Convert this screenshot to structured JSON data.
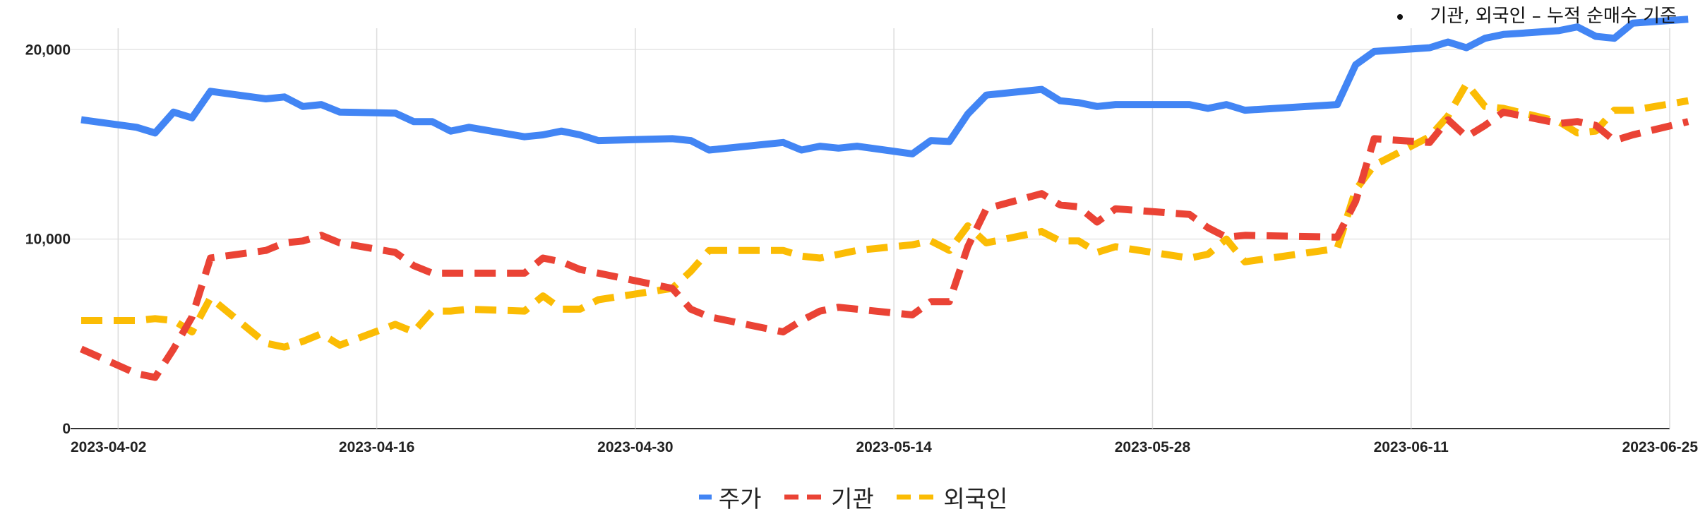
{
  "note": {
    "text": "기관, 외국인 – 누적 순매수 기준"
  },
  "chart_data": {
    "type": "line",
    "x_ticks": [
      "2023-04-02",
      "2023-04-16",
      "2023-04-30",
      "2023-05-14",
      "2023-05-28",
      "2023-06-11",
      "2023-06-25"
    ],
    "y_ticks": [
      "0",
      "10,000",
      "20,000"
    ],
    "ylim": [
      0,
      21500
    ],
    "xlim": [
      "2023-03-31",
      "2023-06-25"
    ],
    "grid": true,
    "legend_position": "bottom",
    "dates": [
      "2023-03-31",
      "2023-04-03",
      "2023-04-04",
      "2023-04-05",
      "2023-04-06",
      "2023-04-07",
      "2023-04-10",
      "2023-04-11",
      "2023-04-12",
      "2023-04-13",
      "2023-04-14",
      "2023-04-17",
      "2023-04-18",
      "2023-04-19",
      "2023-04-20",
      "2023-04-21",
      "2023-04-24",
      "2023-04-25",
      "2023-04-26",
      "2023-04-27",
      "2023-04-28",
      "2023-05-02",
      "2023-05-03",
      "2023-05-04",
      "2023-05-08",
      "2023-05-09",
      "2023-05-10",
      "2023-05-11",
      "2023-05-12",
      "2023-05-15",
      "2023-05-16",
      "2023-05-17",
      "2023-05-18",
      "2023-05-19",
      "2023-05-22",
      "2023-05-23",
      "2023-05-24",
      "2023-05-25",
      "2023-05-26",
      "2023-05-30",
      "2023-05-31",
      "2023-06-01",
      "2023-06-02",
      "2023-06-07",
      "2023-06-08",
      "2023-06-09",
      "2023-06-12",
      "2023-06-13",
      "2023-06-14",
      "2023-06-15",
      "2023-06-16",
      "2023-06-19",
      "2023-06-20",
      "2023-06-21",
      "2023-06-22",
      "2023-06-23",
      "2023-06-26"
    ],
    "series": [
      {
        "name": "주가",
        "color": "#4285F4",
        "dash": "solid",
        "values": [
          16300,
          15900,
          15600,
          16700,
          16400,
          17800,
          17400,
          17500,
          17000,
          17100,
          16700,
          16650,
          16200,
          16200,
          15700,
          15900,
          15400,
          15500,
          15700,
          15500,
          15200,
          15300,
          15200,
          14700,
          15100,
          14700,
          14900,
          14800,
          14900,
          14500,
          15200,
          15150,
          16600,
          17600,
          17900,
          17300,
          17200,
          17000,
          17100,
          17100,
          16900,
          17100,
          16800,
          17100,
          19200,
          19900,
          20100,
          20400,
          20100,
          20600,
          20800,
          21000,
          21200,
          20700,
          20600,
          21400,
          21600
        ]
      },
      {
        "name": "기관",
        "color": "#EA4335",
        "dash": "dashed",
        "values": [
          4200,
          2900,
          2700,
          4200,
          5900,
          9000,
          9400,
          9800,
          9900,
          10200,
          9800,
          9300,
          8600,
          8200,
          8200,
          8200,
          8200,
          9000,
          8800,
          8400,
          8200,
          7400,
          6300,
          5900,
          5100,
          5700,
          6200,
          6400,
          6300,
          6000,
          6700,
          6700,
          9600,
          11600,
          12400,
          11800,
          11700,
          10900,
          11600,
          11300,
          10600,
          10100,
          10200,
          10100,
          12000,
          15300,
          15100,
          16300,
          15400,
          16000,
          16700,
          16100,
          16200,
          16000,
          15200,
          15500,
          16200
        ]
      },
      {
        "name": "외국인",
        "color": "#FBBC04",
        "dash": "dashed",
        "values": [
          5700,
          5700,
          5800,
          5700,
          5100,
          6900,
          4500,
          4300,
          4600,
          5000,
          4400,
          5500,
          5100,
          6200,
          6200,
          6300,
          6200,
          7000,
          6300,
          6300,
          6800,
          7400,
          8300,
          9400,
          9400,
          9100,
          9000,
          9200,
          9400,
          9700,
          9900,
          9400,
          10700,
          9800,
          10400,
          9900,
          9900,
          9300,
          9600,
          9000,
          9200,
          10000,
          8800,
          9500,
          12600,
          13900,
          15400,
          16500,
          18200,
          17000,
          16900,
          16200,
          15600,
          15700,
          16800,
          16800,
          17300
        ]
      }
    ]
  },
  "legend": [
    {
      "label": "주가",
      "color": "#4285F4",
      "dash": "solid"
    },
    {
      "label": "기관",
      "color": "#EA4335",
      "dash": "dashed"
    },
    {
      "label": "외국인",
      "color": "#FBBC04",
      "dash": "dashed"
    }
  ]
}
